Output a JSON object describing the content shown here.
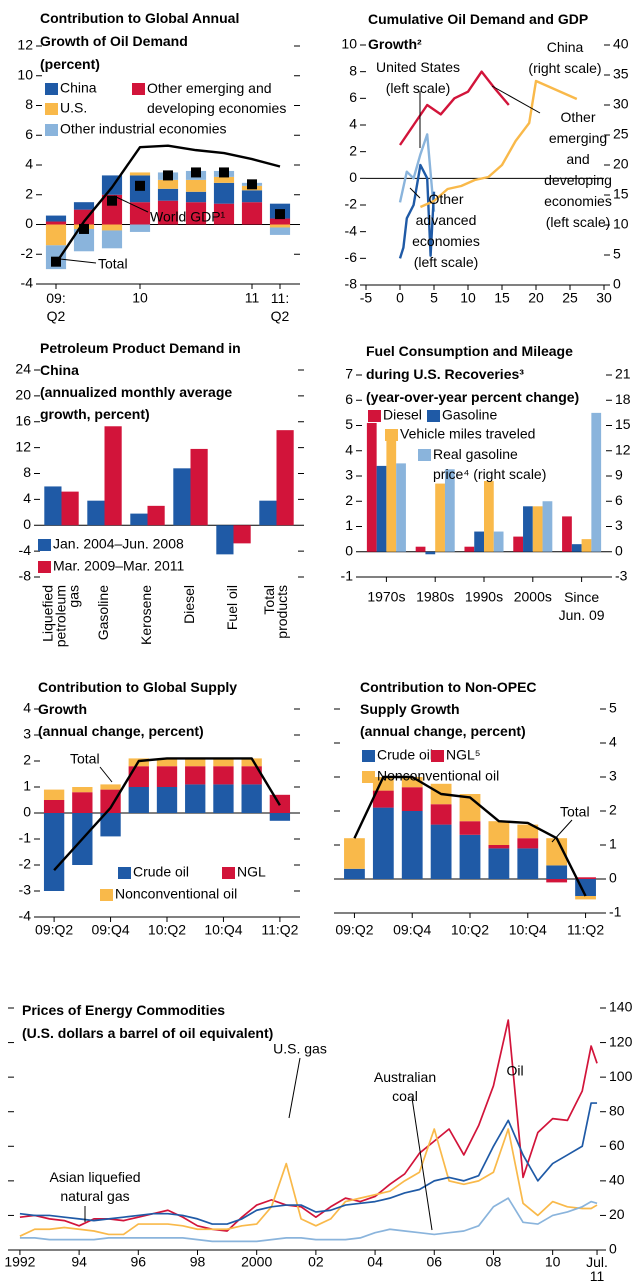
{
  "chart_data": [
    {
      "type": "bar",
      "stacked": true,
      "title": "Contribution to Global Annual\nGrowth of Oil Demand\n(percent)",
      "categories": [
        "09:\nQ2",
        null,
        null,
        "10",
        null,
        null,
        null,
        "11",
        "11:\nQ2"
      ],
      "ylim": [
        -4,
        12
      ],
      "yticks": [
        -4,
        -2,
        0,
        2,
        4,
        6,
        8,
        10,
        12
      ],
      "series": [
        {
          "name": "Other emerging and\ndeveloping economies",
          "color": "#d2143a",
          "values": [
            0.2,
            1.0,
            2.0,
            1.5,
            1.6,
            1.5,
            1.4,
            1.5,
            0.4
          ]
        },
        {
          "name": "China",
          "color": "#1f5aa6",
          "values": [
            0.4,
            0.5,
            1.3,
            1.8,
            0.8,
            0.7,
            1.4,
            0.8,
            1.0
          ]
        },
        {
          "name": "U.S.",
          "color": "#f9b94a",
          "values": [
            -1.4,
            -0.3,
            -0.4,
            0.2,
            0.6,
            0.8,
            0.4,
            0.3,
            -0.2
          ]
        },
        {
          "name": "Other industrial economies",
          "color": "#8ab4dc",
          "values": [
            -1.6,
            -1.5,
            -1.2,
            -0.5,
            0.5,
            0.6,
            0.4,
            0.2,
            -0.5
          ]
        },
        {
          "name": "Total",
          "type": "scatter",
          "color": "#000000",
          "values": [
            -2.5,
            -0.3,
            1.6,
            2.6,
            3.3,
            3.5,
            3.5,
            2.7,
            0.7
          ]
        },
        {
          "name": "World GDP¹",
          "type": "line",
          "color": "#000000",
          "values": [
            -2.6,
            0.2,
            2.5,
            5.2,
            5.3,
            5.0,
            4.8,
            4.4,
            3.9
          ]
        }
      ]
    },
    {
      "type": "line",
      "title": "Cumulative Oil Demand and GDP\nGrowth²",
      "xlim": [
        -5,
        30
      ],
      "xticks": [
        -5,
        0,
        5,
        10,
        15,
        20,
        25,
        30
      ],
      "ylim": [
        -8,
        10
      ],
      "yticks": [
        -8,
        -6,
        -4,
        -2,
        0,
        2,
        4,
        6,
        8,
        10
      ],
      "y2lim": [
        0,
        40
      ],
      "y2ticks": [
        0,
        5,
        10,
        15,
        20,
        25,
        30,
        35,
        40
      ],
      "series": [
        {
          "name": "United States\n(left scale)",
          "color": "#8ab4dc",
          "x": [
            0,
            1,
            2,
            3,
            4,
            5
          ],
          "values": [
            -1.8,
            0.5,
            0,
            1.8,
            3.3,
            -2.5
          ]
        },
        {
          "name": "Other\nadvanced\neconomies\n(left scale)",
          "color": "#1f5aa6",
          "x": [
            0,
            0.5,
            1,
            2,
            3,
            4,
            4.5,
            5
          ],
          "values": [
            -6,
            -5.2,
            -3,
            -2,
            1,
            0,
            -5.8,
            -1
          ]
        },
        {
          "name": "Other\nemerging\nand\ndeveloping\neconomies\n(left scale)",
          "color": "#d2143a",
          "x": [
            0,
            2,
            4,
            6,
            8,
            10,
            12,
            14,
            16
          ],
          "values": [
            2.5,
            4,
            5.5,
            4.8,
            6,
            6.5,
            8,
            6.7,
            5.5
          ]
        },
        {
          "name": "China\n(right scale)",
          "color": "#f9b94a",
          "axis": "y2",
          "x": [
            3,
            5,
            7,
            9,
            11,
            13,
            15,
            17,
            19,
            20,
            22,
            24,
            26
          ],
          "values": [
            13,
            14,
            16,
            16.5,
            17.5,
            18,
            20,
            24,
            27,
            34,
            33,
            32,
            31
          ]
        }
      ]
    },
    {
      "type": "bar",
      "title": "Petroleum Product Demand in\nChina\n(annualized monthly average\ngrowth, percent)",
      "categories": [
        "Liquefied\npetroleum\ngas",
        "Gasoline",
        "Kerosene",
        "Diesel",
        "Fuel oil",
        "Total\nproducts"
      ],
      "ylim": [
        -8,
        24
      ],
      "yticks": [
        -8,
        -4,
        0,
        4,
        8,
        12,
        16,
        20,
        24
      ],
      "series": [
        {
          "name": "Jan. 2004–Jun. 2008",
          "color": "#1f5aa6",
          "values": [
            6,
            3.8,
            1.8,
            8.8,
            -4.5,
            3.8
          ]
        },
        {
          "name": "Mar. 2009–Mar. 2011",
          "color": "#d2143a",
          "values": [
            5.2,
            15.3,
            3,
            11.8,
            -2.8,
            14.7
          ]
        }
      ]
    },
    {
      "type": "bar",
      "title": "Fuel Consumption and Mileage\nduring U.S. Recoveries³\n(year-over-year percent change)",
      "categories": [
        "1970s",
        "1980s",
        "1990s",
        "2000s",
        "Since\nJun. 09"
      ],
      "ylim": [
        -1,
        7
      ],
      "yticks": [
        -1,
        0,
        1,
        2,
        3,
        4,
        5,
        6,
        7
      ],
      "y2lim": [
        -3,
        21
      ],
      "y2ticks": [
        -3,
        0,
        3,
        6,
        9,
        12,
        15,
        18,
        21
      ],
      "series": [
        {
          "name": "Diesel",
          "color": "#d2143a",
          "values": [
            5.1,
            0.2,
            0.2,
            0.6,
            1.4
          ]
        },
        {
          "name": "Gasoline",
          "color": "#1f5aa6",
          "values": [
            3.4,
            -0.1,
            0.8,
            1.8,
            0.3
          ]
        },
        {
          "name": "Vehicle miles traveled",
          "color": "#f9b94a",
          "values": [
            4.4,
            2.7,
            2.8,
            1.8,
            0.5
          ]
        },
        {
          "name": "Real gasoline\nprice⁴ (right scale)",
          "color": "#8ab4dc",
          "axis": "y2",
          "values": [
            10.5,
            9.8,
            2.4,
            6,
            16.5
          ]
        }
      ]
    },
    {
      "type": "bar",
      "stacked": true,
      "title": "Contribution to Global Supply\nGrowth\n(annual change, percent)",
      "categories": [
        "09:Q2",
        null,
        "09:Q4",
        null,
        "10:Q2",
        null,
        "10:Q4",
        null,
        "11:Q2"
      ],
      "ylim": [
        -4,
        4
      ],
      "yticks": [
        -4,
        -3,
        -2,
        -1,
        0,
        1,
        2,
        3,
        4
      ],
      "series": [
        {
          "name": "Crude oil",
          "color": "#1f5aa6",
          "values": [
            -3.0,
            -2.0,
            -0.9,
            1.0,
            1.0,
            1.1,
            1.1,
            1.1,
            -0.3
          ]
        },
        {
          "name": "NGL",
          "color": "#d2143a",
          "values": [
            0.5,
            0.8,
            0.9,
            0.8,
            0.8,
            0.7,
            0.7,
            0.7,
            0.7
          ]
        },
        {
          "name": "Nonconventional oil",
          "color": "#f9b94a",
          "values": [
            0.4,
            0.2,
            0.2,
            0.3,
            0.3,
            0.3,
            0.3,
            0.3,
            0.0
          ]
        },
        {
          "name": "Total",
          "type": "line",
          "color": "#000000",
          "values": [
            -2.2,
            -1.0,
            0.2,
            2.0,
            2.1,
            2.1,
            2.1,
            2.1,
            0.3
          ]
        }
      ]
    },
    {
      "type": "bar",
      "stacked": true,
      "y_axis_side": "right",
      "title": "Contribution to Non-OPEC\nSupply Growth\n(annual change, percent)",
      "categories": [
        "09:Q2",
        null,
        "09:Q4",
        null,
        "10:Q2",
        null,
        "10:Q4",
        null,
        "11:Q2"
      ],
      "ylim": [
        -1,
        5
      ],
      "yticks": [
        -1,
        0,
        1,
        2,
        3,
        4,
        5
      ],
      "series": [
        {
          "name": "Crude oil",
          "color": "#1f5aa6",
          "values": [
            0.3,
            2.1,
            2.0,
            1.6,
            1.3,
            0.9,
            0.9,
            0.4,
            -0.5
          ]
        },
        {
          "name": "NGL⁵",
          "color": "#d2143a",
          "values": [
            0.0,
            0.5,
            0.7,
            0.6,
            0.4,
            0.1,
            0.3,
            -0.1,
            0.05
          ]
        },
        {
          "name": "Nonconventional oil",
          "color": "#f9b94a",
          "values": [
            0.9,
            0.4,
            0.3,
            0.6,
            0.8,
            0.7,
            0.4,
            0.8,
            -0.1
          ]
        },
        {
          "name": "Total",
          "type": "line",
          "color": "#000000",
          "values": [
            1.2,
            3.0,
            3.0,
            2.5,
            2.4,
            1.7,
            1.65,
            1.2,
            -0.5
          ]
        }
      ]
    },
    {
      "type": "line",
      "y_axis_side": "right",
      "title": "Prices of Energy Commodities\n(U.S. dollars a barrel of oil equivalent)",
      "x": [
        1992,
        1992.5,
        1993,
        1993.5,
        1994,
        1994.5,
        1995,
        1995.5,
        1996,
        1996.5,
        1997,
        1997.5,
        1998,
        1998.5,
        1999,
        1999.5,
        2000,
        2000.5,
        2001,
        2001.5,
        2002,
        2002.5,
        2003,
        2003.5,
        2004,
        2004.5,
        2005,
        2005.5,
        2006,
        2006.5,
        2007,
        2007.5,
        2008,
        2008.5,
        2009,
        2009.5,
        2010,
        2010.5,
        2011,
        2011.3,
        2011.5
      ],
      "xlim": [
        1991.8,
        2011.6
      ],
      "xticks": [
        1992,
        {
          "value": 1994,
          "label": "94"
        },
        {
          "value": 1996,
          "label": "96"
        },
        {
          "value": 1998,
          "label": "98"
        },
        2000,
        {
          "value": 2002,
          "label": "02"
        },
        {
          "value": 2004,
          "label": "04"
        },
        {
          "value": 2006,
          "label": "06"
        },
        {
          "value": 2008,
          "label": "08"
        },
        {
          "value": 2010,
          "label": "10"
        },
        {
          "value": 2011.5,
          "label": "Jul.\n11"
        }
      ],
      "ylim": [
        0,
        140
      ],
      "yticks": [
        0,
        20,
        40,
        60,
        80,
        100,
        120,
        140
      ],
      "series": [
        {
          "name": "Oil",
          "color": "#d2143a",
          "values": [
            19,
            20,
            18,
            17,
            14,
            18,
            18,
            17,
            19,
            21,
            23,
            19,
            14,
            12,
            11,
            19,
            26,
            29,
            26,
            25,
            19,
            25,
            30,
            28,
            31,
            38,
            44,
            56,
            63,
            70,
            55,
            72,
            95,
            133,
            42,
            68,
            76,
            75,
            92,
            118,
            108
          ]
        },
        {
          "name": "U.S. gas",
          "color": "#f9b94a",
          "values": [
            8,
            12,
            12,
            13,
            12,
            11,
            9,
            9,
            15,
            15,
            15,
            14,
            12,
            12,
            12,
            14,
            15,
            25,
            50,
            18,
            14,
            18,
            28,
            30,
            32,
            34,
            40,
            45,
            70,
            40,
            38,
            40,
            45,
            70,
            27,
            20,
            28,
            25,
            24,
            24,
            26
          ]
        },
        {
          "name": "Australian\ncoal",
          "color": "#8ab4dc",
          "values": [
            7,
            7,
            6,
            6,
            6,
            6,
            7,
            7,
            7,
            7,
            7,
            7,
            6,
            5,
            5,
            5,
            5,
            6,
            7,
            7,
            6,
            6,
            6,
            7,
            10,
            12,
            11,
            10,
            9,
            10,
            11,
            14,
            25,
            30,
            16,
            15,
            20,
            22,
            25,
            28,
            27
          ]
        },
        {
          "name": "Asian liquefied\nnatural gas",
          "color": "#1f5aa6",
          "values": [
            21,
            20,
            20,
            19,
            18,
            17,
            18,
            19,
            20,
            21,
            21,
            20,
            18,
            15,
            15,
            18,
            23,
            25,
            26,
            26,
            22,
            23,
            26,
            27,
            28,
            30,
            33,
            35,
            40,
            42,
            40,
            43,
            60,
            75,
            55,
            40,
            50,
            55,
            60,
            85,
            85
          ]
        }
      ]
    }
  ]
}
